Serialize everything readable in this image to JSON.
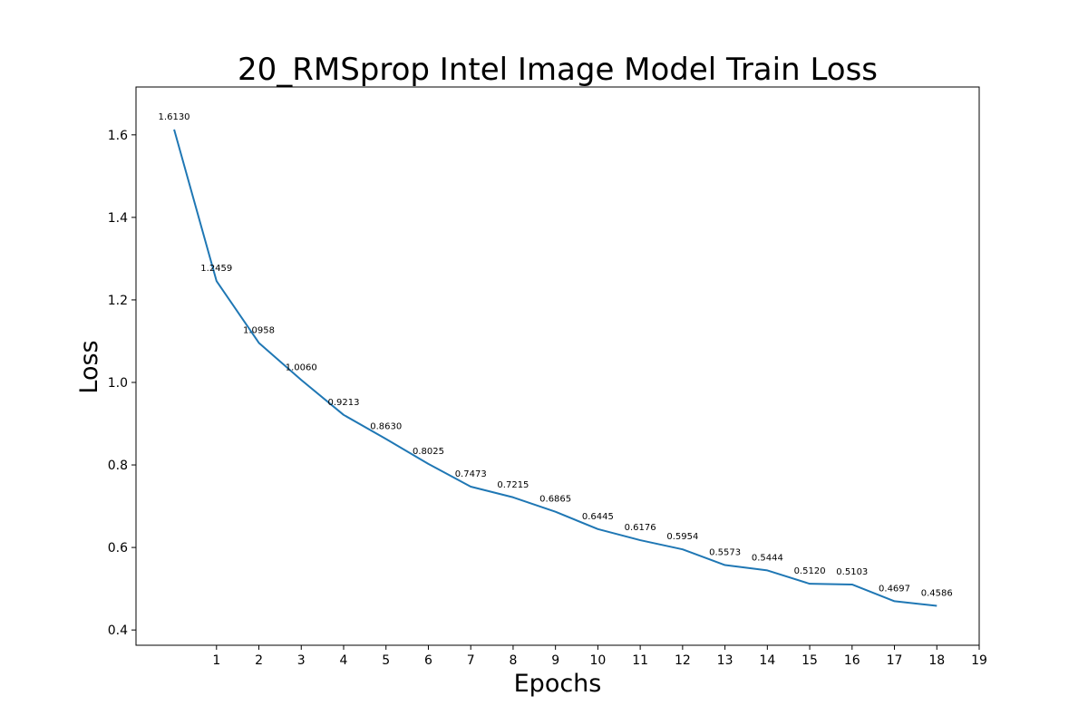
{
  "chart_data": {
    "type": "line",
    "title": "20_RMSprop Intel Image Model Train Loss",
    "xlabel": "Epochs",
    "ylabel": "Loss",
    "x": [
      0,
      1,
      2,
      3,
      4,
      5,
      6,
      7,
      8,
      9,
      10,
      11,
      12,
      13,
      14,
      15,
      16,
      17,
      18
    ],
    "series": [
      {
        "values": [
          1.613,
          1.2459,
          1.0958,
          1.006,
          0.9213,
          0.863,
          0.8025,
          0.7473,
          0.7215,
          0.6865,
          0.6445,
          0.6176,
          0.5954,
          0.5573,
          0.5444,
          0.512,
          0.5103,
          0.4697,
          0.4586
        ],
        "labels": [
          "1.6130",
          "1.2459",
          "1.0958",
          "1.0060",
          "0.9213",
          "0.8630",
          "0.8025",
          "0.7473",
          "0.7215",
          "0.6865",
          "0.6445",
          "0.6176",
          "0.5954",
          "0.5573",
          "0.5444",
          "0.5120",
          "0.5103",
          "0.4697",
          "0.4586"
        ],
        "color": "#1f77b4"
      }
    ],
    "xticks": [
      1,
      2,
      3,
      4,
      5,
      6,
      7,
      8,
      9,
      10,
      11,
      12,
      13,
      14,
      15,
      16,
      17,
      18,
      19
    ],
    "xtick_labels": [
      "1",
      "2",
      "3",
      "4",
      "5",
      "6",
      "7",
      "8",
      "9",
      "10",
      "11",
      "12",
      "13",
      "14",
      "15",
      "16",
      "17",
      "18",
      "19"
    ],
    "yticks": [
      0.4,
      0.6,
      0.8,
      1.0,
      1.2,
      1.4,
      1.6
    ],
    "ytick_labels": [
      "0.4",
      "0.6",
      "0.8",
      "1.0",
      "1.2",
      "1.4",
      "1.6"
    ],
    "xlim": [
      -0.9,
      19
    ],
    "ylim": [
      0.363,
      1.716
    ],
    "grid": false,
    "legend": false
  }
}
